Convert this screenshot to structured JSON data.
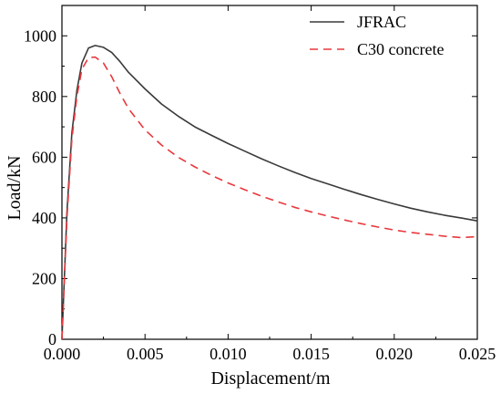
{
  "chart_data": {
    "type": "line",
    "xlabel": "Displacement/m",
    "ylabel": "Load/kN",
    "xlim": [
      0,
      0.025
    ],
    "ylim": [
      0,
      1100
    ],
    "xticks": [
      "0.000",
      "0.005",
      "0.010",
      "0.015",
      "0.020",
      "0.025"
    ],
    "yticks": [
      "0",
      "200",
      "400",
      "600",
      "800",
      "1000"
    ],
    "legend_position": "top-right",
    "grid": false,
    "series": [
      {
        "name": "JFRAC",
        "color": "#3a3a3a",
        "style": "solid",
        "x": [
          0,
          0.0003,
          0.0006,
          0.0009,
          0.0012,
          0.0016,
          0.002,
          0.0025,
          0.003,
          0.0035,
          0.004,
          0.005,
          0.006,
          0.007,
          0.008,
          0.009,
          0.01,
          0.011,
          0.012,
          0.013,
          0.014,
          0.015,
          0.016,
          0.017,
          0.018,
          0.019,
          0.02,
          0.021,
          0.022,
          0.023,
          0.024,
          0.025
        ],
        "y": [
          0,
          420,
          680,
          820,
          910,
          960,
          968,
          962,
          945,
          915,
          880,
          825,
          775,
          735,
          700,
          672,
          645,
          620,
          595,
          572,
          550,
          530,
          512,
          494,
          477,
          461,
          446,
          432,
          420,
          409,
          400,
          390
        ]
      },
      {
        "name": "C30 concrete",
        "color": "#e8383d",
        "style": "dashed",
        "x": [
          0,
          0.0003,
          0.0006,
          0.0009,
          0.0012,
          0.0016,
          0.002,
          0.0025,
          0.003,
          0.0035,
          0.004,
          0.005,
          0.006,
          0.007,
          0.008,
          0.009,
          0.01,
          0.011,
          0.012,
          0.013,
          0.014,
          0.015,
          0.016,
          0.017,
          0.018,
          0.019,
          0.02,
          0.021,
          0.022,
          0.023,
          0.024,
          0.025
        ],
        "y": [
          0,
          400,
          660,
          800,
          890,
          928,
          930,
          910,
          865,
          810,
          760,
          690,
          640,
          600,
          568,
          540,
          515,
          493,
          472,
          453,
          435,
          420,
          406,
          393,
          381,
          370,
          360,
          352,
          346,
          340,
          335,
          338
        ]
      }
    ]
  }
}
